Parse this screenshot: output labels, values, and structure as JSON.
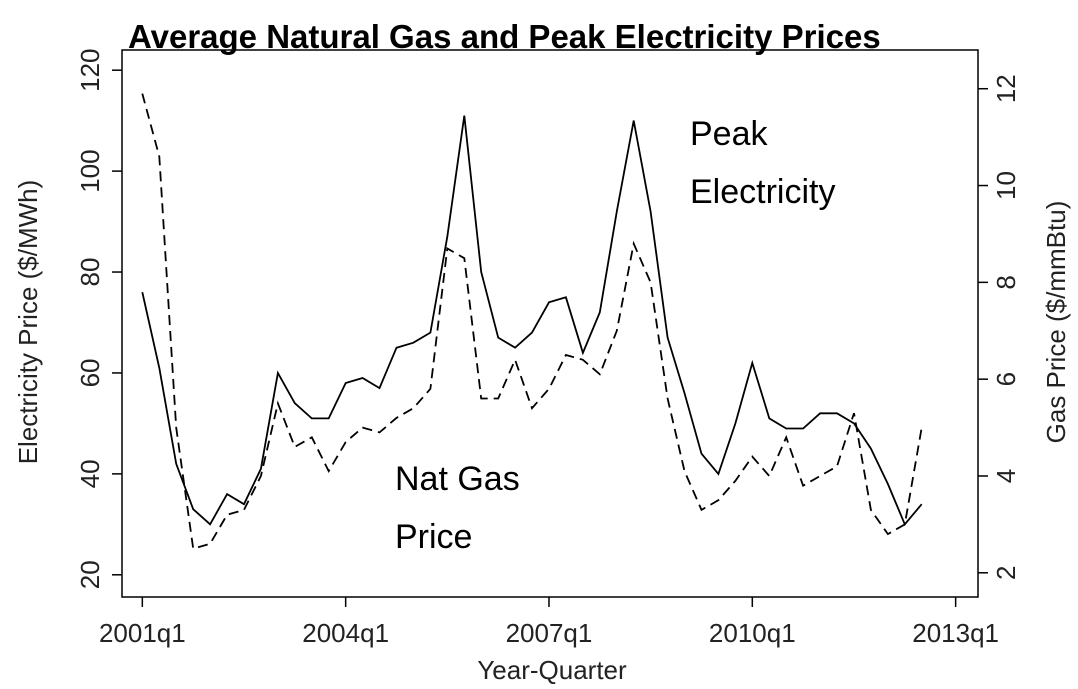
{
  "chart_data": {
    "type": "line",
    "title": "Average Natural Gas and Peak Electricity Prices",
    "x_label": "Year-Quarter",
    "y_label": "Electricity Price ($/MWh)",
    "y2_label": "Gas Price ($/mmBtu)",
    "annotations": [
      "Peak Electricity",
      "Nat Gas Price"
    ],
    "x": [
      2001,
      2001.25,
      2001.5,
      2001.75,
      2002,
      2002.25,
      2002.5,
      2002.75,
      2003,
      2003.25,
      2003.5,
      2003.75,
      2004,
      2004.25,
      2004.5,
      2004.75,
      2005,
      2005.25,
      2005.5,
      2005.75,
      2006,
      2006.25,
      2006.5,
      2006.75,
      2007,
      2007.25,
      2007.5,
      2007.75,
      2008,
      2008.25,
      2008.5,
      2008.75,
      2009,
      2009.25,
      2009.5,
      2009.75,
      2010,
      2010.25,
      2010.5,
      2010.75,
      2011,
      2011.25,
      2011.5,
      2011.75,
      2012,
      2012.25,
      2012.5
    ],
    "series": [
      {
        "name": "Peak Electricity",
        "color": "#000000",
        "dash": "solid",
        "axis": "y",
        "values": [
          76,
          61,
          42,
          33,
          30,
          36,
          34,
          41,
          60,
          54,
          51,
          51,
          58,
          59,
          57,
          65,
          66,
          68,
          87,
          111,
          80,
          67,
          65,
          68,
          74,
          75,
          64,
          72,
          92,
          110,
          92,
          67,
          56,
          44,
          40,
          50,
          62,
          51,
          49,
          49,
          52,
          52,
          50,
          45,
          38,
          30,
          34
        ]
      },
      {
        "name": "Nat Gas Price",
        "color": "#000000",
        "dash": "dashed",
        "axis": "y2",
        "values": [
          11.9,
          10.6,
          5.0,
          2.5,
          2.6,
          3.2,
          3.3,
          4.0,
          5.5,
          4.6,
          4.8,
          4.1,
          4.7,
          5.0,
          4.9,
          5.2,
          5.4,
          5.8,
          8.7,
          8.5,
          5.6,
          5.6,
          6.4,
          5.4,
          5.8,
          6.5,
          6.4,
          6.1,
          7.0,
          8.8,
          8.0,
          5.6,
          4.1,
          3.3,
          3.5,
          3.9,
          4.4,
          4.0,
          4.8,
          3.8,
          4.0,
          4.2,
          5.3,
          3.3,
          2.8,
          3.0,
          5.0
        ]
      }
    ],
    "xlim": [
      2000.7,
      2013.33
    ],
    "xticks": [
      {
        "value": 2001,
        "label": "2001q1"
      },
      {
        "value": 2004,
        "label": "2004q1"
      },
      {
        "value": 2007,
        "label": "2007q1"
      },
      {
        "value": 2010,
        "label": "2010q1"
      },
      {
        "value": 2013,
        "label": "2013q1"
      }
    ],
    "ylim": [
      15.6,
      124
    ],
    "yticks": [
      20,
      40,
      60,
      80,
      100,
      120
    ],
    "y2lim": [
      1.5,
      12.8
    ],
    "y2ticks": [
      2,
      4,
      6,
      8,
      10,
      12
    ],
    "grid": false
  }
}
